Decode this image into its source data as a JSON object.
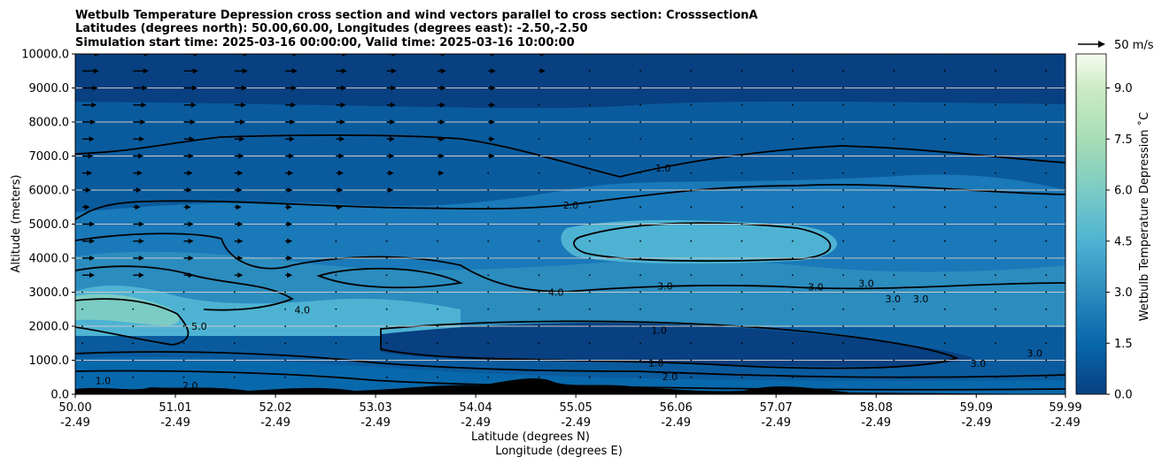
{
  "chart_data": {
    "type": "contourf",
    "title_lines": [
      "Wetbulb Temperature Depression cross section and wind vectors parallel to cross section: CrosssectionA",
      "Latitudes (degrees north): 50.00,60.00, Longitudes (degrees east): -2.50,-2.50",
      "Simulation start time: 2025-03-16 00:00:00, Valid time: 2025-03-16 10:00:00"
    ],
    "ylabel": "Altitude (meters)",
    "xlabel_lines": [
      "Latitude (degrees N)",
      "Longitude (degrees E)"
    ],
    "ylim": [
      0,
      10000
    ],
    "yticks": [
      "0.0",
      "1000.0",
      "2000.0",
      "3000.0",
      "4000.0",
      "5000.0",
      "6000.0",
      "7000.0",
      "8000.0",
      "9000.0",
      "10000.0"
    ],
    "ytick_values": [
      0,
      1000,
      2000,
      3000,
      4000,
      5000,
      6000,
      7000,
      8000,
      9000,
      10000
    ],
    "xlim": [
      50.0,
      59.99
    ],
    "xtick_values": [
      50.0,
      51.01,
      52.02,
      53.03,
      54.04,
      55.05,
      56.06,
      57.07,
      58.08,
      59.09,
      59.99
    ],
    "xtick_lat": [
      "50.00",
      "51.01",
      "52.02",
      "53.03",
      "54.04",
      "55.05",
      "56.06",
      "57.07",
      "58.08",
      "59.09",
      "59.99"
    ],
    "xtick_lon": [
      "-2.49",
      "-2.49",
      "-2.49",
      "-2.49",
      "-2.49",
      "-2.49",
      "-2.49",
      "-2.49",
      "-2.49",
      "-2.49",
      "-2.49"
    ],
    "grid": "horizontal",
    "colorbar": {
      "label": "Wetbulb Temperature Depression ˚C",
      "range": [
        0.0,
        10.0
      ],
      "ticks": [
        "0.0",
        "1.5",
        "3.0",
        "4.5",
        "6.0",
        "7.5",
        "9.0"
      ],
      "tick_values": [
        0.0,
        1.5,
        3.0,
        4.5,
        6.0,
        7.5,
        9.0
      ]
    },
    "quiver_key": "50 m/s",
    "contour_labels": [
      {
        "text": "1.0",
        "lat": 55.93,
        "alt": 6550
      },
      {
        "text": "2.0",
        "lat": 55.0,
        "alt": 5450
      },
      {
        "text": "4.0",
        "lat": 54.85,
        "alt": 2900
      },
      {
        "text": "3.0",
        "lat": 55.95,
        "alt": 3080
      },
      {
        "text": "5.0",
        "lat": 51.25,
        "alt": 1900
      },
      {
        "text": "4.0",
        "lat": 52.29,
        "alt": 2380
      },
      {
        "text": "1.0",
        "lat": 55.89,
        "alt": 1780
      },
      {
        "text": "1.0",
        "lat": 55.86,
        "alt": 820
      },
      {
        "text": "2.0",
        "lat": 56.0,
        "alt": 420
      },
      {
        "text": "3.0",
        "lat": 57.47,
        "alt": 3050
      },
      {
        "text": "3.0",
        "lat": 57.98,
        "alt": 3150
      },
      {
        "text": "3.0",
        "lat": 58.25,
        "alt": 2700
      },
      {
        "text": "3.0",
        "lat": 58.53,
        "alt": 2700
      },
      {
        "text": "3.0",
        "lat": 59.68,
        "alt": 1100
      },
      {
        "text": "3.0",
        "lat": 59.11,
        "alt": 800
      },
      {
        "text": "1.0",
        "lat": 50.28,
        "alt": 300
      },
      {
        "text": "2.0",
        "lat": 51.16,
        "alt": 150
      }
    ],
    "palette": [
      "#084081",
      "#0a5b9e",
      "#0868ac",
      "#1a79b9",
      "#2b8cbe",
      "#3a9cc9",
      "#4eb3d3",
      "#62bfd1",
      "#7bccc4",
      "#94d4bc",
      "#a8ddb5",
      "#bfe6bf",
      "#ccebc5",
      "#ddf1d7",
      "#e0f3db",
      "#f7fcf0"
    ]
  }
}
